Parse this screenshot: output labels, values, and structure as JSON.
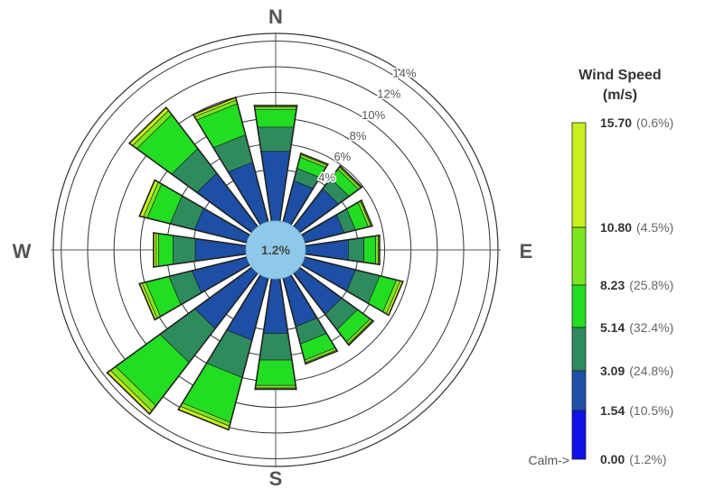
{
  "chart_data": {
    "type": "wind-rose",
    "directions": [
      "N",
      "NNE",
      "NE",
      "ENE",
      "E",
      "ESE",
      "SE",
      "SSE",
      "S",
      "SSW",
      "SW",
      "WSW",
      "W",
      "WNW",
      "NW",
      "NNW"
    ],
    "direction_labels": {
      "N": "N",
      "E": "E",
      "S": "S",
      "W": "W"
    },
    "radial_ticks": [
      "4%",
      "6%",
      "8%",
      "10%",
      "12%",
      "14%"
    ],
    "radial_tick_values": [
      4,
      6,
      8,
      10,
      12,
      14
    ],
    "radial_max": 14.6,
    "calm_center_label": "1.2%",
    "speed_bins": [
      {
        "name": "1.54-3.09",
        "color": "#1c4fa5"
      },
      {
        "name": "3.09-5.14",
        "color": "#2e8b5e"
      },
      {
        "name": "5.14-8.23",
        "color": "#22dd22"
      },
      {
        "name": "8.23-10.80",
        "color": "#7be61f"
      },
      {
        "name": "10.80-15.70",
        "color": "#c7f01c"
      }
    ],
    "cumulative_by_direction": {
      "N": [
        5.5,
        7.4,
        8.8,
        9.0,
        9.1
      ],
      "NNE": [
        3.3,
        4.3,
        5.2,
        5.4,
        5.5
      ],
      "NE": [
        3.7,
        4.7,
        5.6,
        5.8,
        5.9
      ],
      "ENE": [
        3.1,
        4.0,
        5.0,
        5.2,
        5.3
      ],
      "E": [
        3.3,
        4.5,
        5.4,
        5.6,
        5.7
      ],
      "ESE": [
        4.0,
        5.9,
        7.2,
        7.5,
        7.7
      ],
      "SE": [
        4.0,
        5.5,
        6.7,
        6.9,
        7.0
      ],
      "SSE": [
        3.9,
        5.3,
        6.6,
        6.8,
        6.9
      ],
      "S": [
        4.3,
        6.4,
        8.4,
        8.6,
        8.7
      ],
      "SSW": [
        5.0,
        8.0,
        11.6,
        11.9,
        12.2
      ],
      "SW": [
        5.4,
        8.7,
        12.9,
        13.4,
        13.7
      ],
      "WSW": [
        4.3,
        6.1,
        7.9,
        8.2,
        8.4
      ],
      "W": [
        3.9,
        5.6,
        6.7,
        6.9,
        7.1
      ],
      "WNW": [
        4.1,
        6.0,
        7.8,
        8.1,
        8.4
      ],
      "NW": [
        5.2,
        7.6,
        10.9,
        11.3,
        11.6
      ],
      "NNW": [
        4.8,
        7.0,
        9.5,
        9.8,
        10.0
      ]
    },
    "legend": {
      "title_line1": "Wind Speed",
      "title_line2": "(m/s)",
      "calm_label": "Calm->",
      "entries": [
        {
          "value": "15.70",
          "pct": "(0.6%)"
        },
        {
          "value": "10.80",
          "pct": "(4.5%)"
        },
        {
          "value": "8.23",
          "pct": "(25.8%)"
        },
        {
          "value": "5.14",
          "pct": "(32.4%)"
        },
        {
          "value": "3.09",
          "pct": "(24.8%)"
        },
        {
          "value": "1.54",
          "pct": "(10.5%)"
        },
        {
          "value": "0.00",
          "pct": "(1.2%)"
        }
      ],
      "colorbar": [
        {
          "from": "10.80",
          "to": "15.70",
          "color": "#c7f01c"
        },
        {
          "from": "8.23",
          "to": "10.80",
          "color": "#7be61f"
        },
        {
          "from": "5.14",
          "to": "8.23",
          "color": "#22dd22"
        },
        {
          "from": "3.09",
          "to": "5.14",
          "color": "#2e8b5e"
        },
        {
          "from": "1.54",
          "to": "3.09",
          "color": "#1c4fa5"
        },
        {
          "from": "0.00",
          "to": "1.54",
          "color": "#1010e8"
        }
      ]
    },
    "colors": {
      "calm": "#8ec9ea",
      "ring": "#333333",
      "axis": "#555555",
      "outline": "#222222"
    }
  }
}
